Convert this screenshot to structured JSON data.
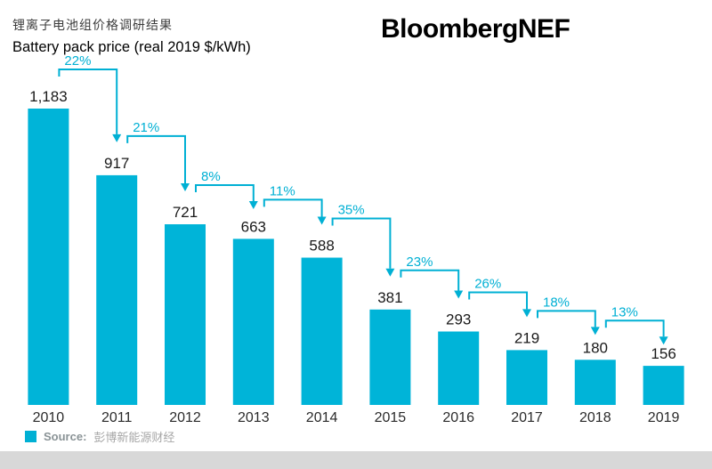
{
  "header": {
    "title_cn": "锂离子电池组价格调研结果",
    "subtitle_en": "Battery pack price (real 2019 $/kWh)",
    "brand": "BloombergNEF"
  },
  "source": {
    "label": "Source:",
    "text": "彭博新能源财经"
  },
  "colors": {
    "bar": "#00b4d8",
    "accent": "#00b0d4",
    "value_text": "#1a1a1a",
    "axis_text": "#2b2b2b",
    "source_label_text": "#8a9396",
    "source_text": "#a6a6a6",
    "footer_strip": "#d8d8d8"
  },
  "chart_data": {
    "type": "bar",
    "title": "Battery pack price (real 2019 $/kWh)",
    "title_cn": "锂离子电池组价格调研结果",
    "categories": [
      "2010",
      "2011",
      "2012",
      "2013",
      "2014",
      "2015",
      "2016",
      "2017",
      "2018",
      "2019"
    ],
    "values": [
      1183,
      917,
      721,
      663,
      588,
      381,
      293,
      219,
      180,
      156
    ],
    "value_labels": [
      "1,183",
      "917",
      "721",
      "663",
      "588",
      "381",
      "293",
      "219",
      "180",
      "156"
    ],
    "pct_change_labels": [
      "22%",
      "21%",
      "8%",
      "11%",
      "35%",
      "23%",
      "26%",
      "18%",
      "13%"
    ],
    "xlabel": "",
    "ylabel": "real 2019 $/kWh",
    "ylim": [
      0,
      1250
    ],
    "grid": false,
    "legend": false,
    "annotations": "year-over-year percentage decline arrows between consecutive bars"
  }
}
